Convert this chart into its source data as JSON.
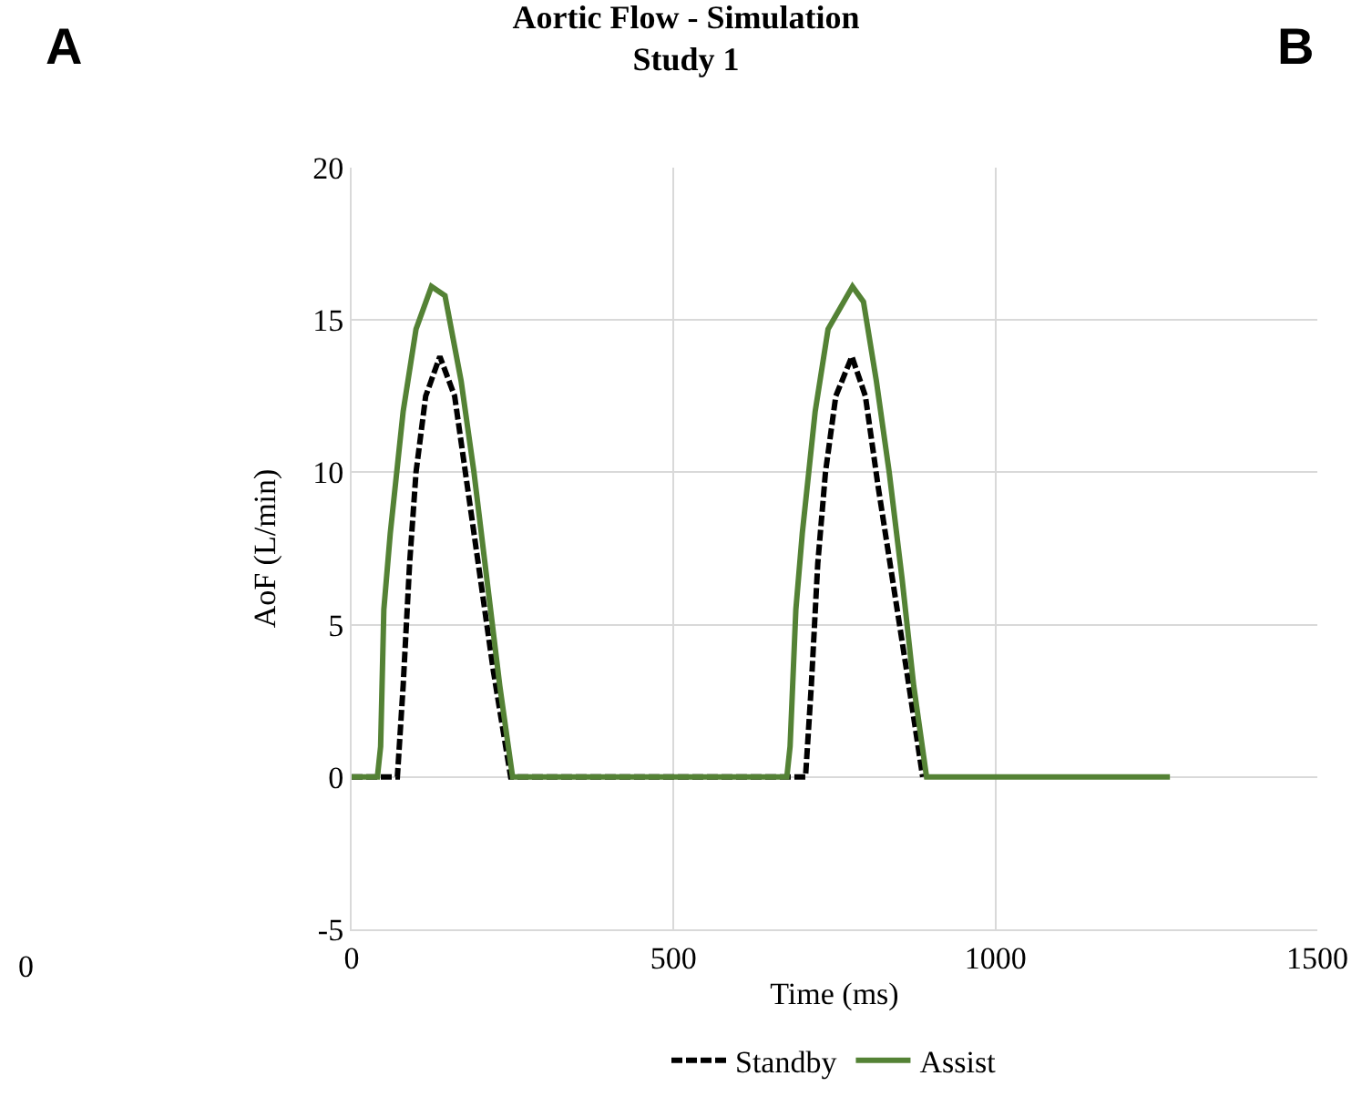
{
  "chart_data": {
    "type": "line",
    "title": "Aortic Flow - Simulation\nStudy 1",
    "xlabel": "Time (ms)",
    "ylabel": "AoF (L/min)",
    "annotations": [
      "A",
      "B",
      "0"
    ],
    "series": [
      {
        "name": "Standby",
        "color": "#000000",
        "line_style": "dashed",
        "x": [
          0,
          71,
          80,
          90,
          100,
          115,
          137,
          160,
          180,
          200,
          220,
          247,
          705,
          714,
          724,
          736,
          752,
          777,
          798,
          818,
          840,
          862,
          887
        ],
        "values": [
          0,
          0,
          3,
          7,
          10,
          12.5,
          13.8,
          12.5,
          9.5,
          6.5,
          3.5,
          0,
          0,
          3,
          7,
          10,
          12.5,
          13.8,
          12.5,
          9.5,
          6.5,
          3.5,
          0
        ]
      },
      {
        "name": "Assist",
        "color": "#548235",
        "line_style": "solid",
        "x": [
          0,
          40,
          45,
          50,
          60,
          80,
          100,
          124,
          145,
          170,
          190,
          210,
          230,
          250,
          676,
          681,
          690,
          700,
          720,
          740,
          778,
          795,
          815,
          835,
          855,
          873,
          893,
          1271
        ],
        "values": [
          0,
          0,
          1,
          5.5,
          8,
          12,
          14.7,
          16.1,
          15.8,
          13,
          10,
          6.5,
          3,
          0,
          0,
          1,
          5.5,
          8,
          12,
          14.7,
          16.1,
          15.6,
          13,
          10,
          6.5,
          3,
          0,
          0
        ]
      }
    ],
    "xlim": [
      0,
      1500
    ],
    "xticks": [
      0,
      500,
      1000,
      1500
    ],
    "ylim": [
      -5,
      20
    ],
    "yticks": [
      -5,
      0,
      5,
      10,
      15,
      20
    ],
    "grid": true,
    "legend": "bottom",
    "marker": "none"
  }
}
